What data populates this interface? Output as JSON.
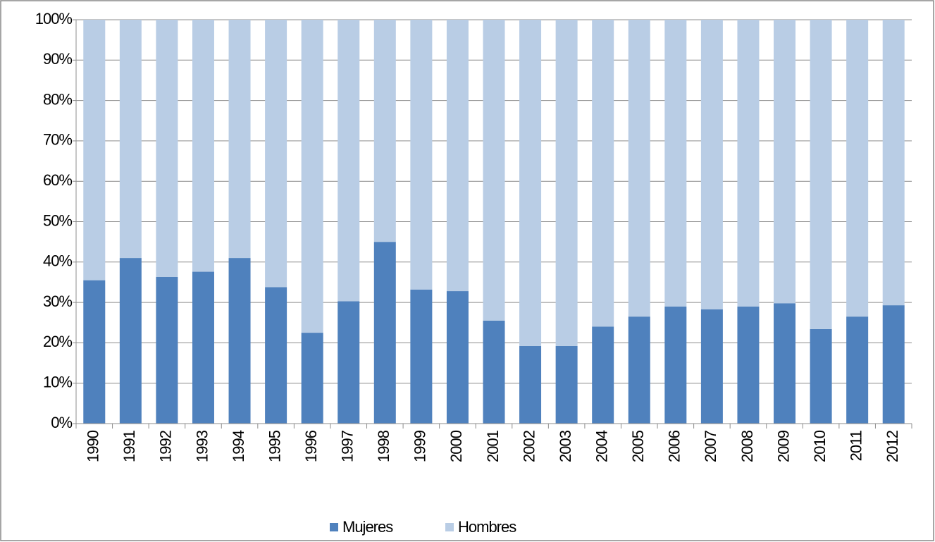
{
  "chart_data": {
    "type": "stacked_bar",
    "categories": [
      "1990",
      "1991",
      "1992",
      "1993",
      "1994",
      "1995",
      "1996",
      "1997",
      "1998",
      "1999",
      "2000",
      "2001",
      "2002",
      "2003",
      "2004",
      "2005",
      "2006",
      "2007",
      "2008",
      "2009",
      "2010",
      "2011",
      "2012"
    ],
    "series": [
      {
        "name": "Mujeres",
        "color": "#4f81bd",
        "values": [
          35.5,
          41,
          36.3,
          37.6,
          41,
          33.8,
          22.5,
          30.3,
          45,
          33.2,
          32.8,
          25.5,
          19.2,
          19.2,
          24,
          26.5,
          29,
          28.3,
          29,
          29.8,
          23.4,
          26.5,
          29.3
        ]
      },
      {
        "name": "Hombres",
        "color": "#b9cde5",
        "values": [
          64.5,
          59,
          63.7,
          62.4,
          59,
          66.2,
          77.5,
          69.7,
          55,
          66.8,
          67.2,
          74.5,
          80.8,
          80.8,
          76,
          73.5,
          71,
          71.7,
          71,
          70.2,
          76.6,
          73.5,
          70.7
        ]
      }
    ],
    "ylim": [
      0,
      100
    ],
    "yticks": [
      {
        "value": 0,
        "label": "0%"
      },
      {
        "value": 10,
        "label": "10%"
      },
      {
        "value": 20,
        "label": "20%"
      },
      {
        "value": 30,
        "label": "30%"
      },
      {
        "value": 40,
        "label": "40%"
      },
      {
        "value": 50,
        "label": "50%"
      },
      {
        "value": 60,
        "label": "60%"
      },
      {
        "value": 70,
        "label": "70%"
      },
      {
        "value": 80,
        "label": "80%"
      },
      {
        "value": 90,
        "label": "90%"
      },
      {
        "value": 100,
        "label": "100%"
      }
    ],
    "grid": true,
    "legend": "bottom"
  }
}
